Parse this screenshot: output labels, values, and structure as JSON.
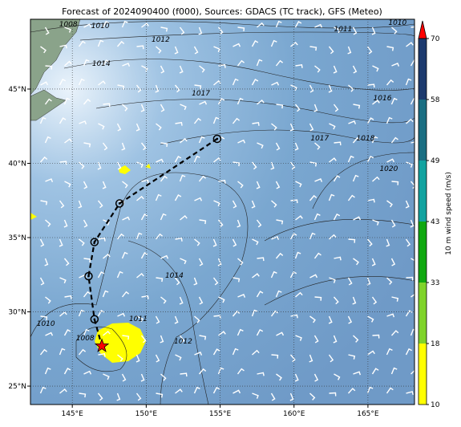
{
  "chart_data": {
    "type": "map",
    "title": "Forecast of 2024090400 (f000), Sources: GDACS (TC track), GFS (Meteo)",
    "xlim": [
      142.17,
      168.15
    ],
    "ylim": [
      23.76,
      49.7
    ],
    "xticks": [
      {
        "value": 145,
        "label": "145°E"
      },
      {
        "value": 150,
        "label": "150°E"
      },
      {
        "value": 155,
        "label": "155°E"
      },
      {
        "value": 160,
        "label": "160°E"
      },
      {
        "value": 165,
        "label": "165°E"
      }
    ],
    "yticks": [
      {
        "value": 25,
        "label": "25°N"
      },
      {
        "value": 30,
        "label": "30°N"
      },
      {
        "value": 35,
        "label": "35°N"
      },
      {
        "value": 40,
        "label": "40°N"
      },
      {
        "value": 45,
        "label": "45°N"
      }
    ],
    "grid": true,
    "track": {
      "color": "#000000",
      "x": [
        154.8,
        148.2,
        146.5,
        146.1,
        146.5
      ],
      "y": [
        41.65,
        37.3,
        34.7,
        32.4,
        29.5
      ]
    },
    "current_position": {
      "color": "#ff0000",
      "x": 147.0,
      "y": 27.7
    },
    "isobar_labels": {
      "text": [
        "1008",
        "1010",
        "1012",
        "1011",
        "1010",
        "1014",
        "1017",
        "1016",
        "1017",
        "1018",
        "1020",
        "1014",
        "1010",
        "1011",
        "1008",
        "1012"
      ],
      "x": [
        144.73,
        146.9,
        150.98,
        163.32,
        167.0,
        146.96,
        153.7,
        165.98,
        161.74,
        164.84,
        166.41,
        151.9,
        143.21,
        149.46,
        145.87,
        152.5
      ],
      "y": [
        49.38,
        49.27,
        48.35,
        49.05,
        49.49,
        46.73,
        44.73,
        44.41,
        41.7,
        41.7,
        39.65,
        32.46,
        29.22,
        29.54,
        28.24,
        28.03
      ]
    },
    "colorbar": {
      "label": "10 m wind speed (m/s)",
      "ticks": [
        10,
        18,
        33,
        43,
        49,
        58,
        70
      ],
      "colors": [
        "#ffff00",
        "#7fd32a",
        "#10a810",
        "#12a3a0",
        "#1a6e82",
        "#1d3a6e"
      ],
      "extend_color": "#ff0000"
    }
  }
}
